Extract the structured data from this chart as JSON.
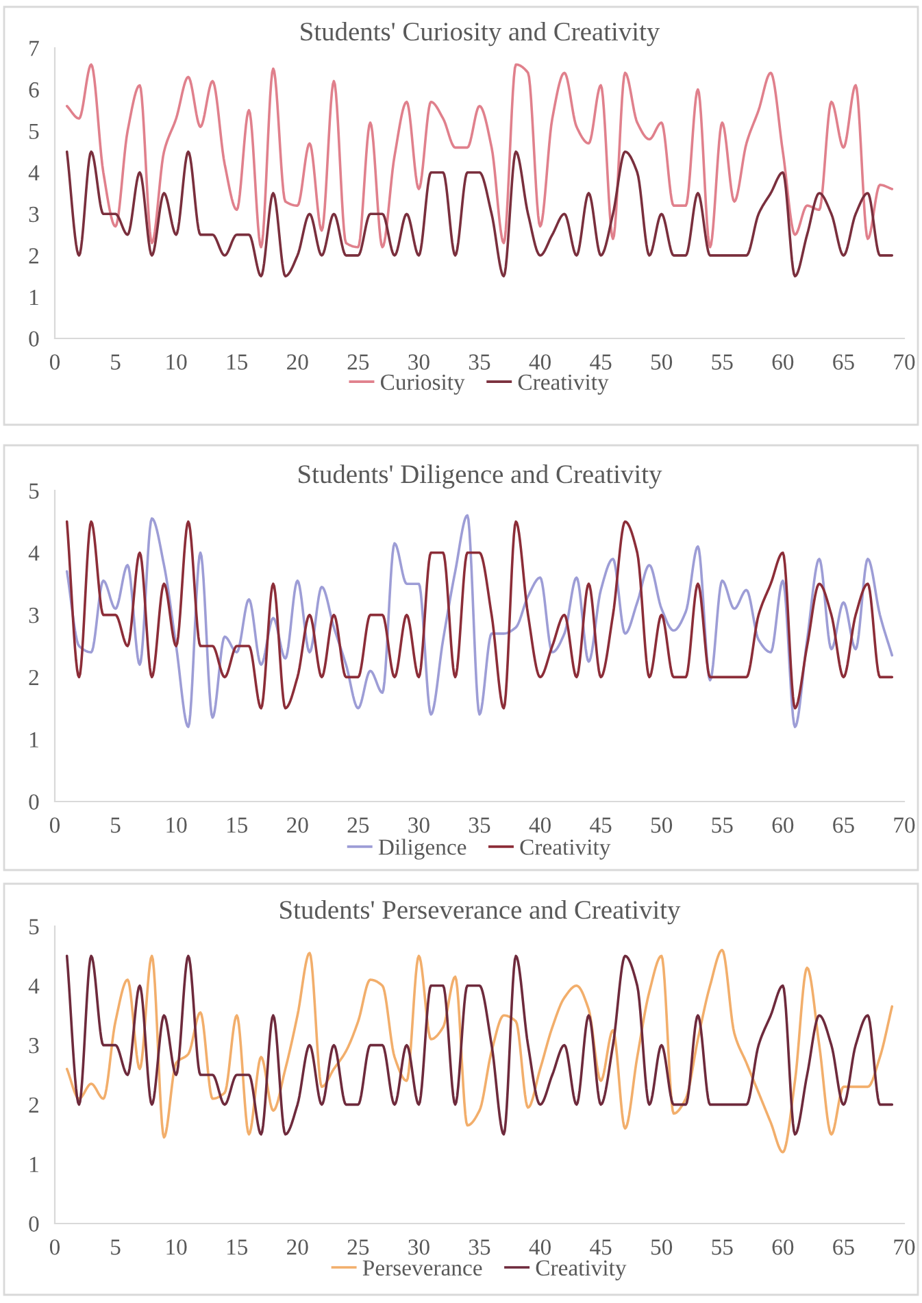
{
  "chart_data": [
    {
      "type": "line",
      "title": "Students' Curiosity and Creativity",
      "x": [
        1,
        2,
        3,
        4,
        5,
        6,
        7,
        8,
        9,
        10,
        11,
        12,
        13,
        14,
        15,
        16,
        17,
        18,
        19,
        20,
        21,
        22,
        23,
        24,
        25,
        26,
        27,
        28,
        29,
        30,
        31,
        32,
        33,
        34,
        35,
        36,
        37,
        38,
        39,
        40,
        41,
        42,
        43,
        44,
        45,
        46,
        47,
        48,
        49,
        50,
        51,
        52,
        53,
        54,
        55,
        56,
        57,
        58,
        59,
        60,
        61,
        62,
        63,
        64,
        65,
        66,
        67,
        68,
        69
      ],
      "xlim": [
        0,
        70
      ],
      "xticks": [
        0,
        5,
        10,
        15,
        20,
        25,
        30,
        35,
        40,
        45,
        50,
        55,
        60,
        65,
        70
      ],
      "ylim": [
        0,
        7
      ],
      "yticks": [
        0,
        1,
        2,
        3,
        4,
        5,
        6,
        7
      ],
      "grid": false,
      "legend": "bottom",
      "series": [
        {
          "name": "Curiosity",
          "color": "#e0808c",
          "values": [
            5.6,
            5.3,
            6.6,
            4.0,
            2.7,
            5.0,
            6.1,
            2.3,
            4.5,
            5.3,
            6.3,
            5.1,
            6.2,
            4.2,
            3.1,
            5.5,
            2.2,
            6.5,
            3.3,
            3.2,
            4.7,
            2.6,
            6.2,
            2.3,
            2.2,
            5.2,
            2.2,
            4.4,
            5.7,
            3.6,
            5.7,
            5.3,
            4.6,
            4.6,
            5.6,
            4.6,
            2.3,
            6.6,
            6.4,
            2.7,
            5.3,
            6.4,
            5.1,
            4.7,
            6.1,
            2.4,
            6.4,
            5.2,
            4.8,
            5.2,
            3.2,
            3.2,
            6.0,
            2.2,
            5.2,
            3.3,
            4.7,
            5.5,
            6.4,
            4.5,
            2.5,
            3.2,
            3.1,
            5.7,
            4.6,
            6.1,
            2.4,
            3.7,
            3.6
          ]
        },
        {
          "name": "Creativity",
          "color": "#7a2f3d",
          "values": [
            4.5,
            2,
            4.5,
            3,
            3,
            2.5,
            4,
            2,
            3.5,
            2.5,
            4.5,
            2.5,
            2.5,
            2,
            2.5,
            2.5,
            1.5,
            3.5,
            1.5,
            2,
            3,
            2,
            3,
            2,
            2,
            3,
            3,
            2,
            3,
            2,
            4,
            4,
            2,
            4,
            4,
            3,
            1.5,
            4.5,
            3,
            2,
            2.5,
            3,
            2,
            3.5,
            2,
            3,
            4.5,
            4,
            2,
            3,
            2,
            2,
            3.5,
            2,
            2,
            2,
            2,
            3,
            3.5,
            4,
            1.5,
            2.5,
            3.5,
            3,
            2,
            3,
            3.5,
            2,
            2
          ]
        }
      ]
    },
    {
      "type": "line",
      "title": "Students' Diligence and Creativity",
      "x": [
        1,
        2,
        3,
        4,
        5,
        6,
        7,
        8,
        9,
        10,
        11,
        12,
        13,
        14,
        15,
        16,
        17,
        18,
        19,
        20,
        21,
        22,
        23,
        24,
        25,
        26,
        27,
        28,
        29,
        30,
        31,
        32,
        33,
        34,
        35,
        36,
        37,
        38,
        39,
        40,
        41,
        42,
        43,
        44,
        45,
        46,
        47,
        48,
        49,
        50,
        51,
        52,
        53,
        54,
        55,
        56,
        57,
        58,
        59,
        60,
        61,
        62,
        63,
        64,
        65,
        66,
        67,
        68,
        69
      ],
      "xlim": [
        0,
        70
      ],
      "xticks": [
        0,
        5,
        10,
        15,
        20,
        25,
        30,
        35,
        40,
        45,
        50,
        55,
        60,
        65,
        70
      ],
      "ylim": [
        0,
        5
      ],
      "yticks": [
        0,
        1,
        2,
        3,
        4,
        5
      ],
      "grid": false,
      "legend": "bottom",
      "series": [
        {
          "name": "Diligence",
          "color": "#9d9dd6",
          "values": [
            3.7,
            2.5,
            2.4,
            3.55,
            3.1,
            3.8,
            2.2,
            4.55,
            3.8,
            2.5,
            1.2,
            4.0,
            1.35,
            2.65,
            2.4,
            3.25,
            2.2,
            2.95,
            2.3,
            3.55,
            2.4,
            3.45,
            2.8,
            2.2,
            1.5,
            2.1,
            1.75,
            4.15,
            3.5,
            3.5,
            1.4,
            2.6,
            3.7,
            4.6,
            1.4,
            2.7,
            2.7,
            2.8,
            3.3,
            3.6,
            2.4,
            2.7,
            3.6,
            2.25,
            3.4,
            3.9,
            2.7,
            3.2,
            3.8,
            3.1,
            2.75,
            3.05,
            4.1,
            1.95,
            3.55,
            3.1,
            3.4,
            2.6,
            2.4,
            3.55,
            1.2,
            2.6,
            3.9,
            2.45,
            3.2,
            2.45,
            3.9,
            3.0,
            2.35
          ]
        },
        {
          "name": "Creativity",
          "color": "#8c2d38",
          "values": [
            4.5,
            2,
            4.5,
            3,
            3,
            2.5,
            4,
            2,
            3.5,
            2.5,
            4.5,
            2.5,
            2.5,
            2,
            2.5,
            2.5,
            1.5,
            3.5,
            1.5,
            2,
            3,
            2,
            3,
            2,
            2,
            3,
            3,
            2,
            3,
            2,
            4,
            4,
            2,
            4,
            4,
            3,
            1.5,
            4.5,
            3,
            2,
            2.5,
            3,
            2,
            3.5,
            2,
            3,
            4.5,
            4,
            2,
            3,
            2,
            2,
            3.5,
            2,
            2,
            2,
            2,
            3,
            3.5,
            4,
            1.5,
            2.5,
            3.5,
            3,
            2,
            3,
            3.5,
            2,
            2
          ]
        }
      ]
    },
    {
      "type": "line",
      "title": "Students' Perseverance and Creativity",
      "x": [
        1,
        2,
        3,
        4,
        5,
        6,
        7,
        8,
        9,
        10,
        11,
        12,
        13,
        14,
        15,
        16,
        17,
        18,
        19,
        20,
        21,
        22,
        23,
        24,
        25,
        26,
        27,
        28,
        29,
        30,
        31,
        32,
        33,
        34,
        35,
        36,
        37,
        38,
        39,
        40,
        41,
        42,
        43,
        44,
        45,
        46,
        47,
        48,
        49,
        50,
        51,
        52,
        53,
        54,
        55,
        56,
        57,
        58,
        59,
        60,
        61,
        62,
        63,
        64,
        65,
        66,
        67,
        68,
        69
      ],
      "xlim": [
        0,
        70
      ],
      "xticks": [
        0,
        5,
        10,
        15,
        20,
        25,
        30,
        35,
        40,
        45,
        50,
        55,
        60,
        65,
        70
      ],
      "ylim": [
        0,
        5
      ],
      "yticks": [
        0,
        1,
        2,
        3,
        4,
        5
      ],
      "grid": false,
      "legend": "bottom",
      "series": [
        {
          "name": "Perseverance",
          "color": "#f2ae6b",
          "values": [
            2.6,
            2.1,
            2.35,
            2.1,
            3.4,
            4.1,
            2.6,
            4.5,
            1.45,
            2.7,
            2.85,
            3.55,
            2.1,
            2.2,
            3.5,
            1.5,
            2.8,
            1.9,
            2.6,
            3.5,
            4.55,
            2.3,
            2.6,
            2.9,
            3.4,
            4.1,
            4.0,
            2.8,
            2.4,
            4.5,
            3.1,
            3.3,
            4.15,
            1.65,
            1.9,
            2.9,
            3.5,
            3.4,
            1.95,
            2.6,
            3.3,
            3.8,
            4.0,
            3.6,
            2.4,
            3.25,
            1.6,
            2.8,
            3.9,
            4.5,
            1.85,
            2.1,
            3.1,
            4.0,
            4.6,
            3.2,
            2.7,
            2.2,
            1.7,
            1.2,
            2.4,
            4.3,
            3.0,
            1.5,
            2.3,
            2.3,
            2.3,
            2.8,
            3.65
          ]
        },
        {
          "name": "Creativity",
          "color": "#6e2a3c",
          "values": [
            4.5,
            2,
            4.5,
            3,
            3,
            2.5,
            4,
            2,
            3.5,
            2.5,
            4.5,
            2.5,
            2.5,
            2,
            2.5,
            2.5,
            1.5,
            3.5,
            1.5,
            2,
            3,
            2,
            3,
            2,
            2,
            3,
            3,
            2,
            3,
            2,
            4,
            4,
            2,
            4,
            4,
            3,
            1.5,
            4.5,
            3,
            2,
            2.5,
            3,
            2,
            3.5,
            2,
            3,
            4.5,
            4,
            2,
            3,
            2,
            2,
            3.5,
            2,
            2,
            2,
            2,
            3,
            3.5,
            4,
            1.5,
            2.5,
            3.5,
            3,
            2,
            3,
            3.5,
            2,
            2
          ]
        }
      ]
    }
  ]
}
